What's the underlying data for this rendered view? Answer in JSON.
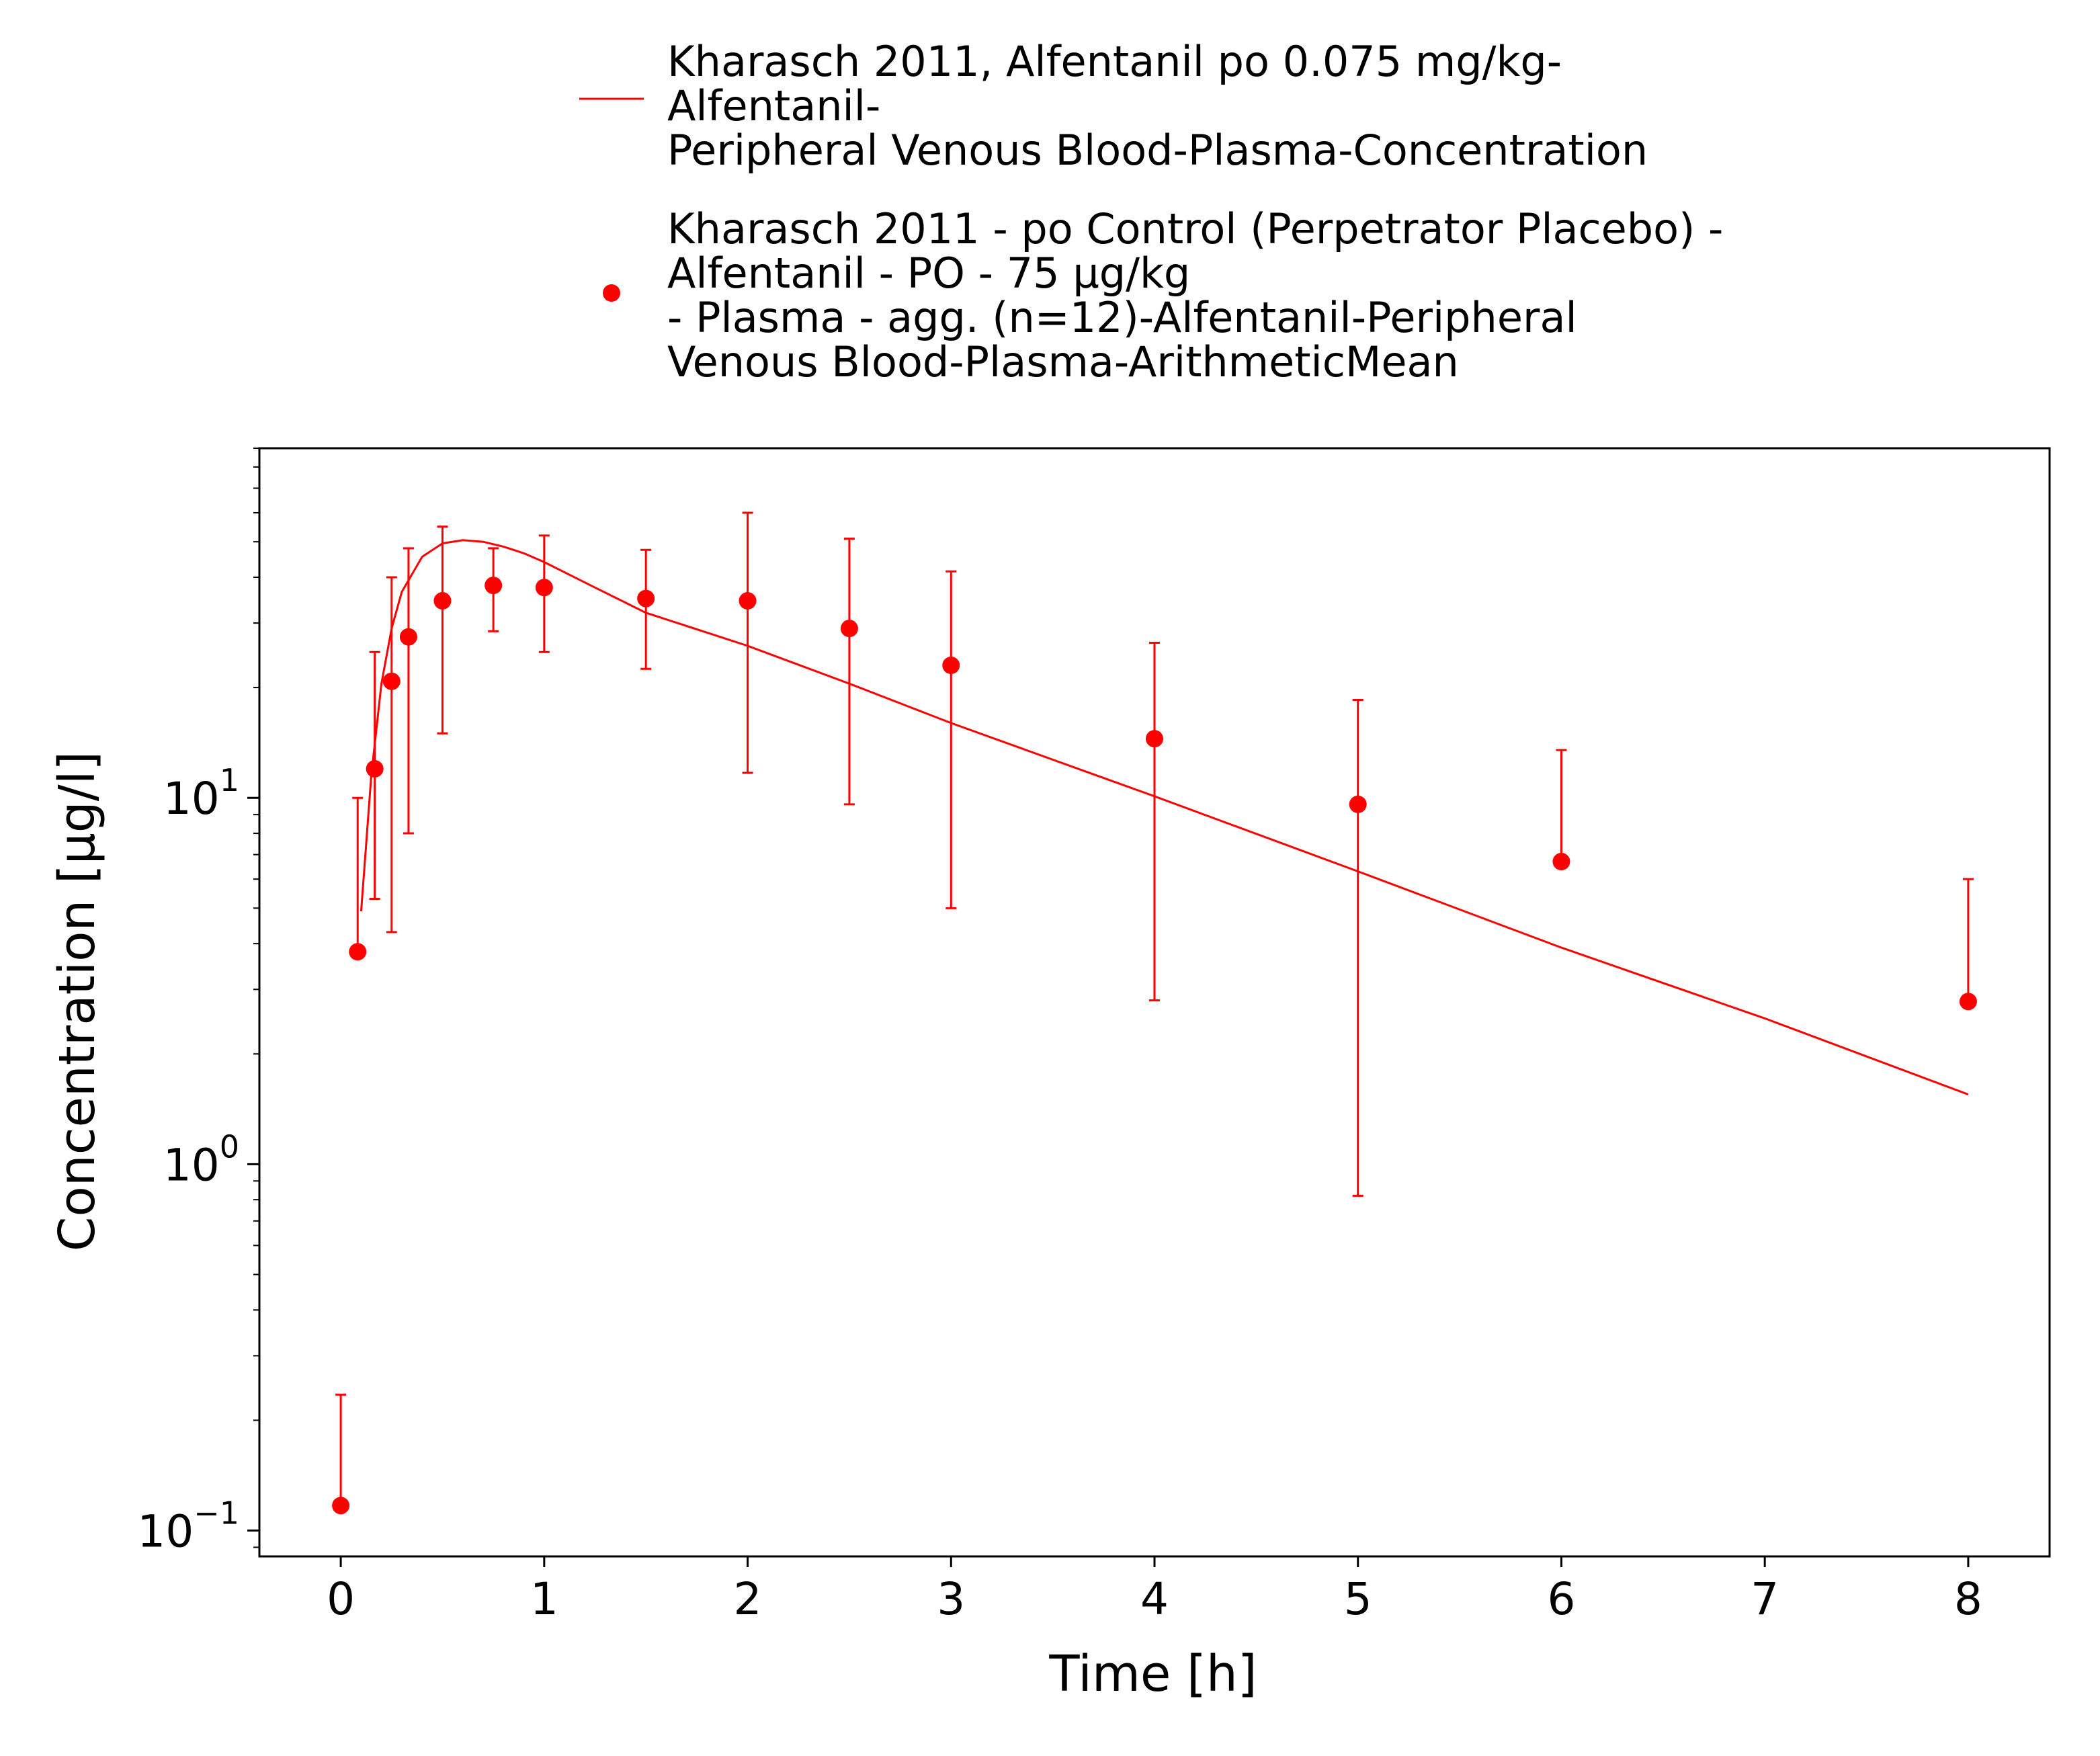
{
  "chart_data": {
    "type": "line",
    "xlabel": "Time [h]",
    "ylabel": "Concentration [µg/l]",
    "xlim": [
      -0.4,
      8.4
    ],
    "ylim": [
      0.085,
      90
    ],
    "y_scale": "log",
    "grid": false,
    "legend_position": "top",
    "x_ticks": [
      "0",
      "1",
      "2",
      "3",
      "4",
      "5",
      "6",
      "7",
      "8"
    ],
    "y_ticks": [
      {
        "base": "10",
        "exp": "−1"
      },
      {
        "base": "10",
        "exp": "0"
      },
      {
        "base": "10",
        "exp": "1"
      }
    ],
    "series": [
      {
        "kind": "line",
        "color": "#ff0000",
        "legend": [
          "Kharasch 2011, Alfentanil po 0.075 mg/kg-",
          "Alfentanil-",
          "Peripheral Venous Blood-Plasma-Concentration"
        ],
        "x": [
          0.1,
          0.15,
          0.2,
          0.25,
          0.3,
          0.4,
          0.5,
          0.6,
          0.7,
          0.8,
          0.9,
          1.0,
          1.25,
          1.5,
          2.0,
          2.5,
          3.0,
          4.0,
          5.0,
          6.0,
          7.0,
          8.0
        ],
        "y": [
          4.9,
          11.5,
          20.5,
          29.0,
          36.5,
          45.5,
          49.5,
          50.5,
          50.0,
          48.5,
          46.5,
          44.0,
          37.5,
          32.0,
          26.0,
          20.5,
          16.0,
          10.1,
          6.3,
          3.9,
          2.5,
          1.55
        ]
      },
      {
        "kind": "scatter_errorbar",
        "color": "#ff0000",
        "legend": [
          "Kharasch 2011 - po Control (Perpetrator Placebo) -",
          "Alfentanil - PO - 75 µg/kg",
          "- Plasma - agg. (n=12)-Alfentanil-Peripheral",
          "Venous Blood-Plasma-ArithmeticMean"
        ],
        "x": [
          0,
          0.083,
          0.167,
          0.25,
          0.333,
          0.5,
          0.75,
          1.0,
          1.5,
          2.0,
          2.5,
          3.0,
          4.0,
          5.0,
          6.0,
          8.0
        ],
        "y": [
          0.117,
          3.8,
          12.0,
          20.8,
          27.5,
          34.5,
          38.0,
          37.5,
          35.0,
          34.5,
          29.0,
          23.0,
          14.5,
          9.6,
          6.7,
          2.78
        ],
        "y_lower": [
          0.117,
          3.8,
          5.3,
          4.3,
          8.0,
          15.0,
          28.5,
          25.0,
          22.5,
          11.7,
          9.6,
          5.0,
          2.8,
          0.82,
          6.7,
          2.78
        ],
        "y_upper": [
          0.235,
          10.0,
          25.0,
          40.0,
          48.0,
          55.0,
          48.0,
          52.0,
          47.5,
          60.0,
          51.0,
          41.5,
          26.5,
          18.5,
          13.5,
          6.0
        ]
      }
    ]
  }
}
